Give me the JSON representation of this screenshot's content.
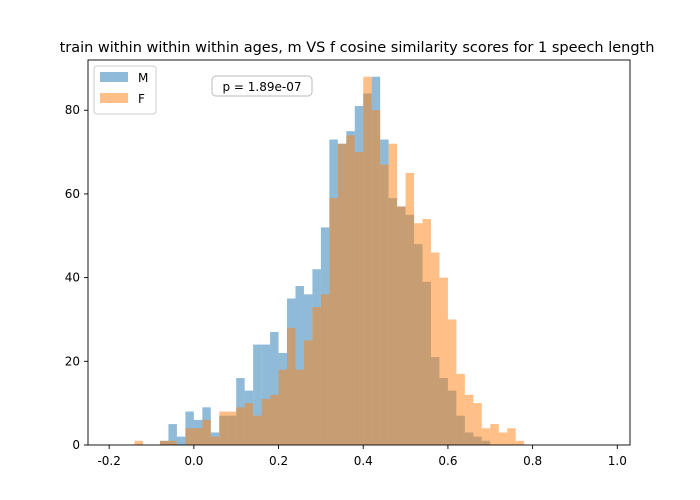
{
  "chart_data": {
    "type": "bar",
    "title": "train within within within ages, m VS f cosine similarity scores for 1 speech length",
    "xlabel": "",
    "ylabel": "",
    "xlim": [
      -0.25,
      1.03
    ],
    "ylim": [
      0,
      92
    ],
    "xticks": [
      "-0.2",
      "0.0",
      "0.2",
      "0.4",
      "0.6",
      "0.8",
      "1.0"
    ],
    "xtick_values": [
      -0.2,
      0.0,
      0.2,
      0.4,
      0.6,
      0.8,
      1.0
    ],
    "yticks": [
      "0",
      "20",
      "40",
      "60",
      "80"
    ],
    "ytick_values": [
      0,
      20,
      40,
      60,
      80
    ],
    "legend_position": "top-left",
    "grid": false,
    "annotation": "p = 1.89e-07",
    "series": [
      {
        "name": "M",
        "color": "#1f77b4",
        "bin_start": -0.08,
        "bin_width": 0.02,
        "values": [
          1,
          5,
          2,
          8,
          6,
          9,
          3,
          7,
          7,
          16,
          13,
          24,
          24,
          27,
          22,
          35,
          38,
          36,
          42,
          52,
          73,
          72,
          75,
          81,
          84,
          88,
          73,
          59,
          57,
          55,
          48,
          39,
          21,
          16,
          13,
          7,
          3,
          2,
          1
        ]
      },
      {
        "name": "F",
        "color": "#ff7f0e",
        "bin_start": -0.14,
        "bin_width": 0.02,
        "values": [
          1,
          0,
          0,
          1,
          1,
          0,
          4,
          4,
          6,
          2,
          8,
          8,
          9,
          10,
          7,
          11,
          12,
          18,
          28,
          18,
          25,
          33,
          36,
          59,
          72,
          74,
          70,
          88,
          80,
          67,
          72,
          57,
          65,
          53,
          54,
          46,
          40,
          30,
          17,
          12,
          10,
          4,
          5,
          3,
          4,
          1
        ]
      }
    ]
  }
}
